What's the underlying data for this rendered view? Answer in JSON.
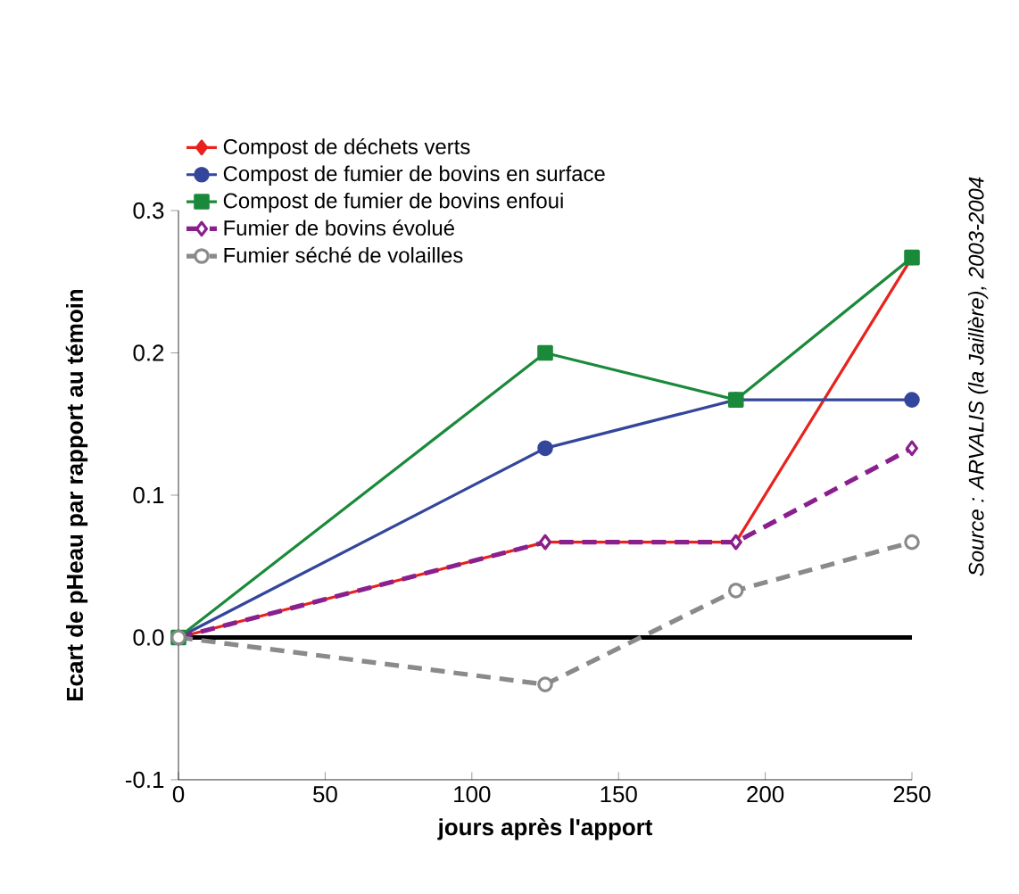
{
  "chart_data": {
    "type": "line",
    "x": [
      0,
      125,
      190,
      250
    ],
    "series": [
      {
        "name": "Compost de déchets verts",
        "color": "#e8221c",
        "marker": "diamond",
        "line_style": "solid",
        "values": [
          0,
          0.067,
          0.067,
          0.267
        ]
      },
      {
        "name": "Compost de fumier de bovins en surface",
        "color": "#34469b",
        "marker": "circle",
        "line_style": "solid",
        "values": [
          0,
          0.133,
          0.167,
          0.167
        ]
      },
      {
        "name": "Compost de fumier de bovins enfoui",
        "color": "#1a8a3a",
        "marker": "square",
        "line_style": "solid",
        "values": [
          0,
          0.2,
          0.167,
          0.267
        ]
      },
      {
        "name": "Fumier de bovins évolué",
        "color": "#8a1f8e",
        "marker": "diamond",
        "line_style": "dashed",
        "values": [
          0,
          0.067,
          0.067,
          0.133
        ]
      },
      {
        "name": "Fumier séché de volailles",
        "color": "#8a8a8a",
        "marker": "circle",
        "line_style": "dashed",
        "values": [
          0,
          -0.033,
          0.033,
          0.067
        ]
      }
    ],
    "xlabel": "jours après l'apport",
    "ylabel": "Ecart de pHeau par rapport au témoin",
    "xlim": [
      0,
      250
    ],
    "xticks": [
      0,
      50,
      100,
      150,
      200,
      250
    ],
    "ylim": [
      -0.1,
      0.3
    ],
    "yticks": [
      -0.1,
      {
        "value": 0,
        "label": "0.0"
      },
      0.1,
      0.2,
      0.3
    ],
    "ref_lines": [
      {
        "axis": "y",
        "value": 0,
        "color": "#000000"
      }
    ],
    "legend": "top left",
    "annotations": [
      "Source : ARVALIS (*la Jaillère*), 2003-2004"
    ]
  }
}
